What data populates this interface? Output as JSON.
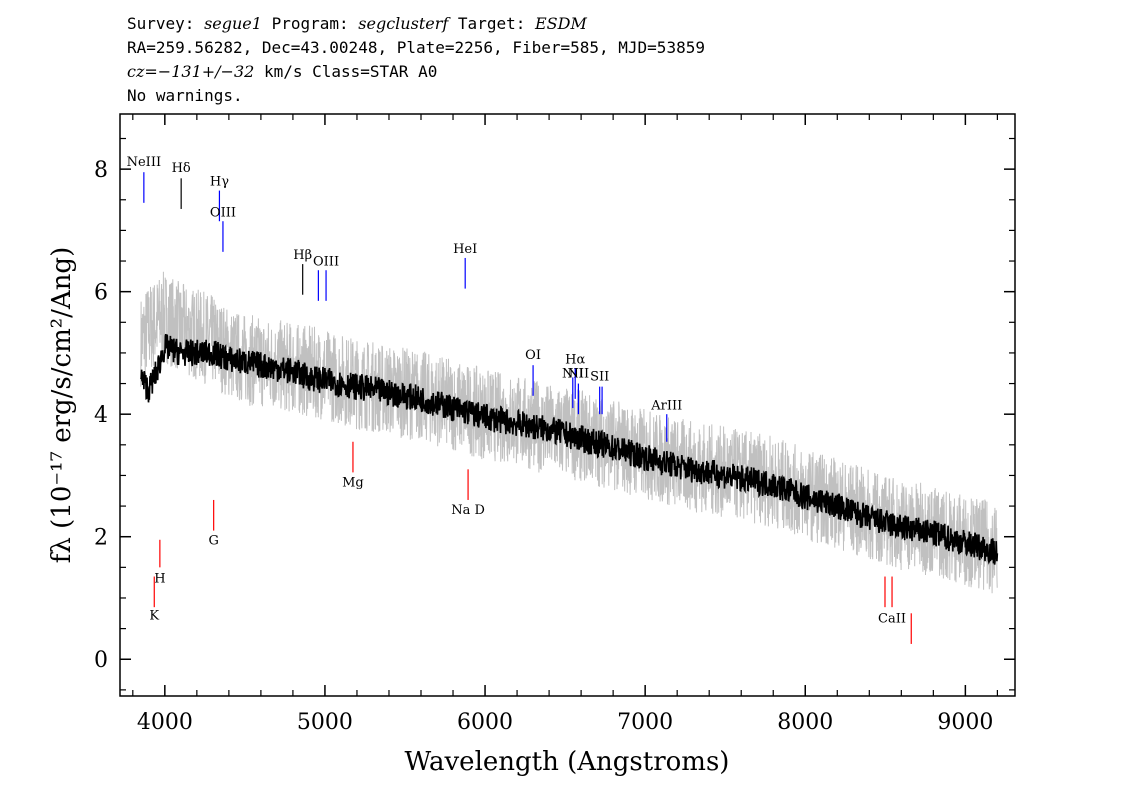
{
  "header": {
    "line1": {
      "survey_label": "Survey:",
      "survey": "segue1",
      "program_label": "Program:",
      "program": "segclusterf",
      "target_label": "Target:",
      "target": "ESDM"
    },
    "line2": "RA=259.56282, Dec=43.00248, Plate=2256, Fiber=585, MJD=53859",
    "line3": {
      "cz": "cz=−131+/−32",
      "rest": " km/s Class=STAR A0"
    },
    "line4": "No warnings."
  },
  "chart_data": {
    "type": "line",
    "xlabel": "Wavelength (Angstroms)",
    "ylabel": "fλ (10⁻¹⁷ erg/s/cm²/Ang)",
    "xlim": [
      3720,
      9310
    ],
    "ylim": [
      -0.6,
      8.9
    ],
    "x_ticks": [
      4000,
      5000,
      6000,
      7000,
      8000,
      9000
    ],
    "y_ticks": [
      0,
      2,
      4,
      6,
      8
    ],
    "x_tick_labels": [
      "4000",
      "5000",
      "6000",
      "7000",
      "8000",
      "9000"
    ],
    "y_tick_labels": [
      "0",
      "2",
      "4",
      "6",
      "8"
    ],
    "series": [
      {
        "style": "gray-noisy",
        "color": "#c0c0c0",
        "x": [
          3850,
          3900,
          3950,
          4000,
          4100,
          4200,
          4300,
          4400,
          4500,
          4600,
          4700,
          4800,
          4900,
          5000,
          5200,
          5400,
          5600,
          5800,
          6000,
          6200,
          6400,
          6600,
          6800,
          7000,
          7200,
          7400,
          7600,
          7800,
          8000,
          8200,
          8400,
          8600,
          8800,
          9000,
          9200
        ],
        "y": [
          5.2,
          5.4,
          5.5,
          5.6,
          5.4,
          5.3,
          5.2,
          5.0,
          4.9,
          4.85,
          4.8,
          4.75,
          4.7,
          4.65,
          4.5,
          4.4,
          4.3,
          4.15,
          4.0,
          3.9,
          3.75,
          3.65,
          3.5,
          3.35,
          3.2,
          3.1,
          3.0,
          2.9,
          2.7,
          2.55,
          2.35,
          2.2,
          2.1,
          1.95,
          1.8
        ]
      },
      {
        "style": "black-smoothed",
        "color": "#000000",
        "x": [
          3850,
          3900,
          3950,
          4000,
          4100,
          4200,
          4300,
          4400,
          4500,
          4600,
          4700,
          4800,
          4900,
          5000,
          5200,
          5400,
          5600,
          5800,
          6000,
          6200,
          6400,
          6600,
          6800,
          7000,
          7200,
          7400,
          7600,
          7800,
          8000,
          8200,
          8400,
          8600,
          8800,
          9000,
          9200
        ],
        "y": [
          4.6,
          4.4,
          4.7,
          5.1,
          5.0,
          5.0,
          5.0,
          4.9,
          4.85,
          4.8,
          4.75,
          4.7,
          4.6,
          4.55,
          4.45,
          4.35,
          4.25,
          4.1,
          3.95,
          3.85,
          3.75,
          3.6,
          3.45,
          3.3,
          3.15,
          3.05,
          2.95,
          2.85,
          2.65,
          2.5,
          2.3,
          2.15,
          2.05,
          1.9,
          1.75
        ]
      }
    ],
    "spectral_features": [
      {
        "x": 3869,
        "y1": 7.45,
        "y2": 7.95,
        "color": "#0000ff",
        "label": "NeIII",
        "label_y": 8.05
      },
      {
        "x": 4102,
        "y1": 7.35,
        "y2": 7.85,
        "color": "#000000",
        "label": "Hδ",
        "label_y": 7.95
      },
      {
        "x": 4341,
        "y1": 7.15,
        "y2": 7.65,
        "color": "#0000ff",
        "label": "Hγ",
        "label_y": 7.73
      },
      {
        "x": 4363,
        "y1": 6.65,
        "y2": 7.15,
        "color": "#0000ff",
        "label": "OIII",
        "label_y": 7.23
      },
      {
        "x": 4861,
        "y1": 5.95,
        "y2": 6.45,
        "color": "#000000",
        "label": "Hβ",
        "label_y": 6.53
      },
      {
        "x": 4959,
        "y1": 5.85,
        "y2": 6.35,
        "color": "#0000ff",
        "label": "",
        "label_y": 6.4
      },
      {
        "x": 5007,
        "y1": 5.85,
        "y2": 6.35,
        "color": "#0000ff",
        "label": "OIII",
        "label_y": 6.43
      },
      {
        "x": 5876,
        "y1": 6.05,
        "y2": 6.55,
        "color": "#0000ff",
        "label": "HeI",
        "label_y": 6.63
      },
      {
        "x": 6300,
        "y1": 4.3,
        "y2": 4.8,
        "color": "#0000ff",
        "label": "OI",
        "label_y": 4.9
      },
      {
        "x": 6548,
        "y1": 4.1,
        "y2": 4.6,
        "color": "#0000ff",
        "label": "NII",
        "label_y": 4.6
      },
      {
        "x": 6563,
        "y1": 4.25,
        "y2": 4.75,
        "color": "#0000ff",
        "label": "Hα",
        "label_y": 4.83
      },
      {
        "x": 6583,
        "y1": 4.0,
        "y2": 4.5,
        "color": "#0000ff",
        "label": "NII",
        "label_y": 4.6
      },
      {
        "x": 6716,
        "y1": 4.0,
        "y2": 4.45,
        "color": "#0000ff",
        "label": "SII",
        "label_y": 4.55
      },
      {
        "x": 6731,
        "y1": 4.0,
        "y2": 4.45,
        "color": "#0000ff",
        "label": "",
        "label_y": 4.55
      },
      {
        "x": 7135,
        "y1": 3.55,
        "y2": 4.0,
        "color": "#0000ff",
        "label": "ArIII",
        "label_y": 4.08
      },
      {
        "x": 3934,
        "y1": 0.85,
        "y2": 1.35,
        "color": "#ff0000",
        "label": "K",
        "label_y": 0.65
      },
      {
        "x": 3969,
        "y1": 1.5,
        "y2": 1.95,
        "color": "#ff0000",
        "label": "H",
        "label_y": 1.25
      },
      {
        "x": 4305,
        "y1": 2.1,
        "y2": 2.6,
        "color": "#ff0000",
        "label": "G",
        "label_y": 1.87
      },
      {
        "x": 5175,
        "y1": 3.05,
        "y2": 3.55,
        "color": "#ff0000",
        "label": "Mg",
        "label_y": 2.82
      },
      {
        "x": 5894,
        "y1": 2.6,
        "y2": 3.1,
        "color": "#ff0000",
        "label": "Na D",
        "label_y": 2.37
      },
      {
        "x": 8498,
        "y1": 0.85,
        "y2": 1.35,
        "color": "#ff0000",
        "label": "",
        "label_y": 0.6
      },
      {
        "x": 8542,
        "y1": 0.85,
        "y2": 1.35,
        "color": "#ff0000",
        "label": "CaII",
        "label_y": 0.6
      },
      {
        "x": 8662,
        "y1": 0.25,
        "y2": 0.75,
        "color": "#ff0000",
        "label": "",
        "label_y": 0.6
      }
    ]
  }
}
